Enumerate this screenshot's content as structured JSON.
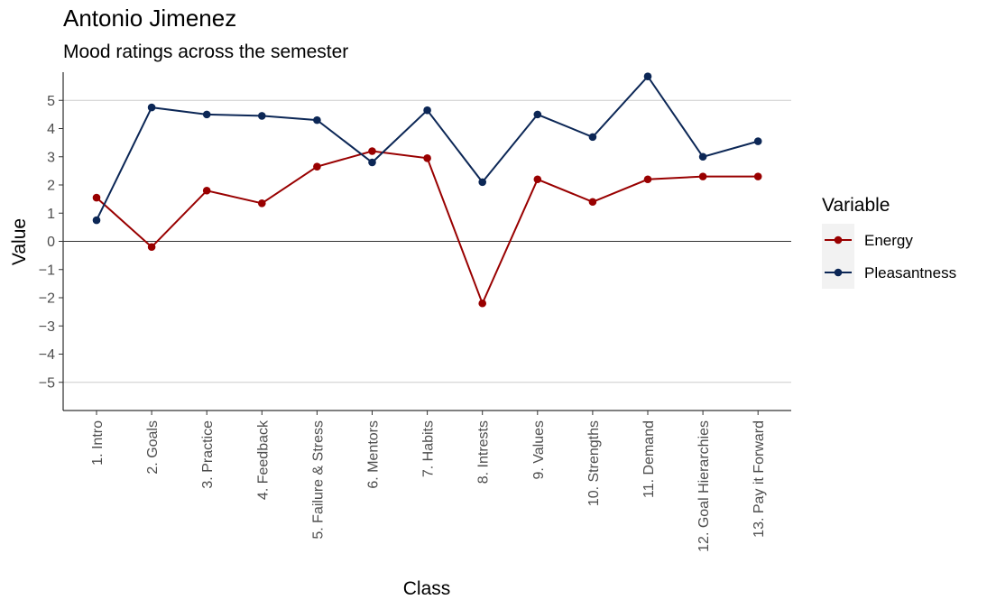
{
  "chart_data": {
    "type": "line",
    "title": "Antonio Jimenez",
    "subtitle": "Mood ratings across the semester",
    "xlabel": "Class",
    "ylabel": "Value",
    "categories": [
      "1. Intro",
      "2. Goals",
      "3. Practice",
      "4. Feedback",
      "5. Failure & Stress",
      "6. Mentors",
      "7. Habits",
      "8. Intrests",
      "9. Values",
      "10. Strengths",
      "11. Demand",
      "12. Goal Hierarchies",
      "13. Pay it Forward"
    ],
    "ylim": [
      -6,
      6
    ],
    "yticks": [
      "5",
      "4",
      "3",
      "2",
      "1",
      "0",
      "−1",
      "−2",
      "−3",
      "−4",
      "−5"
    ],
    "ytick_values": [
      5,
      4,
      3,
      2,
      1,
      0,
      -1,
      -2,
      -3,
      -4,
      -5
    ],
    "grid": "horizontal lines at -5 and 5",
    "reference_line": 0,
    "legend": {
      "title": "Variable",
      "placement": "right"
    },
    "series": [
      {
        "name": "Energy",
        "color": "#990000",
        "values": [
          1.55,
          -0.2,
          1.8,
          1.35,
          2.65,
          3.2,
          2.95,
          -2.2,
          2.2,
          1.4,
          2.2,
          2.3,
          2.3
        ]
      },
      {
        "name": "Pleasantness",
        "color": "#0C2756",
        "values": [
          0.75,
          4.75,
          4.5,
          4.45,
          4.3,
          2.8,
          4.65,
          2.1,
          4.5,
          3.7,
          5.85,
          3.0,
          3.55
        ]
      }
    ]
  }
}
